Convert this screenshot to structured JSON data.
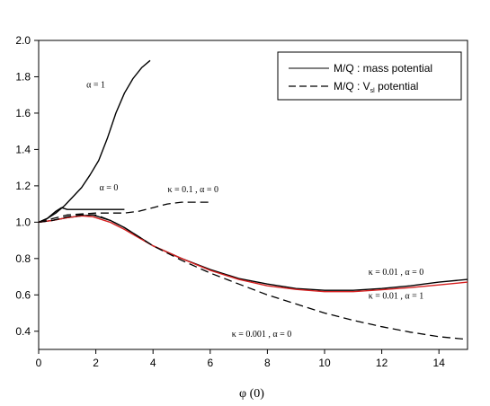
{
  "chart_data": {
    "type": "line",
    "xlabel": "φ (0)",
    "ylabel": "",
    "xlim": [
      0,
      15
    ],
    "ylim": [
      0.3,
      2.0
    ],
    "xticks": [
      0,
      2,
      4,
      6,
      8,
      10,
      12,
      14
    ],
    "yticks": [
      0.4,
      0.6,
      0.8,
      1.0,
      1.2,
      1.4,
      1.6,
      1.8,
      2.0
    ],
    "ytick_labels": [
      "0.4",
      "0.6",
      "0.8",
      "1.0",
      "1.2",
      "1.4",
      "1.6",
      "1.8",
      "2.0"
    ],
    "grid": false,
    "legend_position": "top-right",
    "legend": [
      {
        "label": "M/Q :   mass potential",
        "style": "solid"
      },
      {
        "label_main": "M/Q :  V",
        "label_sub": "sl",
        "label_tail": "  potential",
        "style": "dashed"
      }
    ],
    "series": [
      {
        "style": "solid",
        "color": "#000000",
        "x": [
          0,
          0.3,
          0.6,
          0.9,
          1.2,
          1.5,
          1.8,
          2.1,
          2.4,
          2.7,
          3.0,
          3.3,
          3.6,
          3.9
        ],
        "y": [
          1.0,
          1.02,
          1.05,
          1.09,
          1.14,
          1.19,
          1.26,
          1.34,
          1.46,
          1.6,
          1.71,
          1.79,
          1.85,
          1.89
        ]
      },
      {
        "style": "solid",
        "color": "#000000",
        "x": [
          0,
          0.3,
          0.6,
          0.8,
          1.0,
          1.2,
          1.5,
          2.0,
          2.5,
          3.0
        ],
        "y": [
          1.0,
          1.02,
          1.06,
          1.08,
          1.07,
          1.07,
          1.07,
          1.07,
          1.07,
          1.07
        ]
      },
      {
        "style": "dashed",
        "color": "#000000",
        "x": [
          0,
          0.5,
          1.0,
          1.5,
          2.0,
          2.5,
          3.0,
          3.5,
          4.0,
          4.5,
          5.0,
          5.5,
          6.0
        ],
        "y": [
          1.0,
          1.02,
          1.04,
          1.045,
          1.05,
          1.05,
          1.05,
          1.06,
          1.08,
          1.1,
          1.11,
          1.11,
          1.11
        ]
      },
      {
        "style": "solid",
        "color": "#000000",
        "x": [
          0,
          0.5,
          1.0,
          1.5,
          1.9,
          2.5,
          3.0,
          3.5,
          4.0,
          5.0,
          6.0,
          7.0,
          8.0,
          9.0,
          10.0,
          11.0,
          12.0,
          13.0,
          14.0,
          15.0
        ],
        "y": [
          1.0,
          1.01,
          1.025,
          1.035,
          1.04,
          1.01,
          0.97,
          0.92,
          0.87,
          0.8,
          0.74,
          0.69,
          0.66,
          0.635,
          0.625,
          0.625,
          0.635,
          0.65,
          0.67,
          0.685
        ]
      },
      {
        "style": "solid",
        "color": "#d62020",
        "x": [
          0,
          0.5,
          1.0,
          1.5,
          1.9,
          2.5,
          3.0,
          3.5,
          4.0,
          5.0,
          6.0,
          7.0,
          8.0,
          9.0,
          10.0,
          11.0,
          12.0,
          13.0,
          14.0,
          15.0
        ],
        "y": [
          1.0,
          1.01,
          1.025,
          1.035,
          1.03,
          1.0,
          0.96,
          0.915,
          0.87,
          0.8,
          0.735,
          0.685,
          0.65,
          0.63,
          0.618,
          0.618,
          0.628,
          0.64,
          0.655,
          0.67
        ]
      },
      {
        "style": "dashed",
        "color": "#000000",
        "x": [
          0,
          0.5,
          1.0,
          1.5,
          2.0,
          2.5,
          3.0,
          3.5,
          4.0,
          5.0,
          6.0,
          7.0,
          8.0,
          9.0,
          10.0,
          11.0,
          12.0,
          13.0,
          14.0,
          15.0
        ],
        "y": [
          1.0,
          1.01,
          1.03,
          1.04,
          1.04,
          1.01,
          0.97,
          0.92,
          0.87,
          0.79,
          0.72,
          0.66,
          0.6,
          0.55,
          0.5,
          0.46,
          0.425,
          0.395,
          0.37,
          0.355
        ]
      }
    ],
    "annotations": [
      {
        "text": "α = 1",
        "x": 2.0,
        "y": 1.74
      },
      {
        "text": "α = 0",
        "x": 2.45,
        "y": 1.175
      },
      {
        "text": "κ = 0.1  , α = 0",
        "x": 5.4,
        "y": 1.165
      },
      {
        "text": "κ = 0.01  , α = 0",
        "x": 12.5,
        "y": 0.71
      },
      {
        "text": "κ = 0.01  , α = 1",
        "x": 12.5,
        "y": 0.58
      },
      {
        "text": "κ = 0.001  , α = 0",
        "x": 7.8,
        "y": 0.37
      }
    ]
  }
}
